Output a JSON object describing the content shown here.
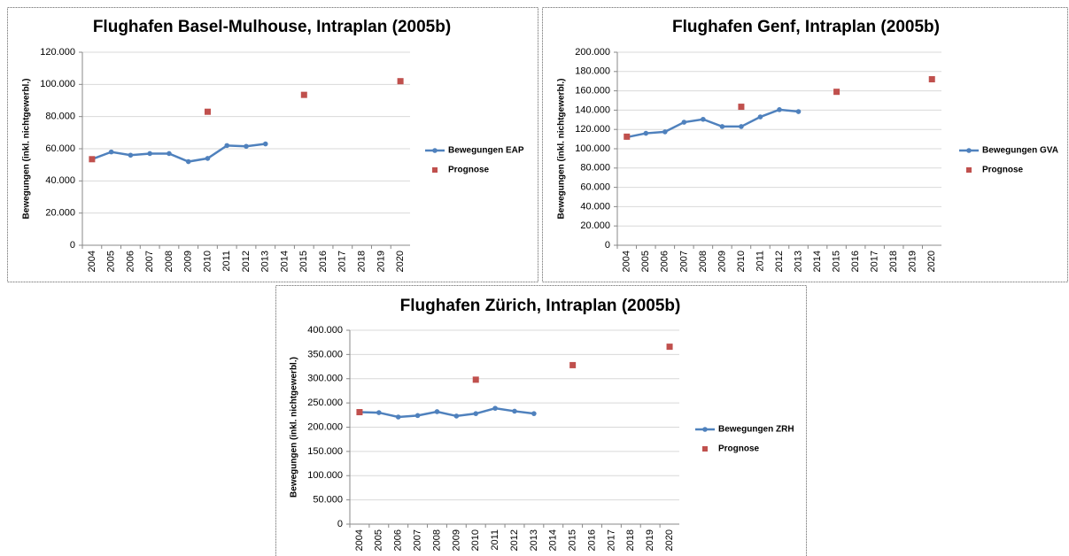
{
  "chart_data": [
    {
      "type": "line",
      "title": "Flughafen Basel-Mulhouse, Intraplan (2005b)",
      "y_label": "Bewegungen (inkl. nichtgewerbl.)",
      "categories": [
        "2004",
        "2005",
        "2006",
        "2007",
        "2008",
        "2009",
        "2010",
        "2011",
        "2012",
        "2013",
        "2014",
        "2015",
        "2016",
        "2017",
        "2018",
        "2019",
        "2020"
      ],
      "series": [
        {
          "name": "Bewegungen EAP",
          "color": "#4f81bd",
          "line": true,
          "values": [
            53500,
            58000,
            56000,
            57000,
            57000,
            52000,
            54000,
            62000,
            61500,
            63000,
            null,
            null,
            null,
            null,
            null,
            null,
            null
          ]
        },
        {
          "name": "Prognose",
          "color": "#c0504d",
          "line": false,
          "values": [
            53500,
            null,
            null,
            null,
            null,
            null,
            83000,
            null,
            null,
            null,
            null,
            93500,
            null,
            null,
            null,
            null,
            102000
          ]
        }
      ],
      "ylim": [
        0,
        120000
      ],
      "yticks": [
        0,
        {
          "value": 20000,
          "label": "20.000"
        },
        {
          "value": 40000,
          "label": "40.000"
        },
        {
          "value": 60000,
          "label": "60.000"
        },
        {
          "value": 80000,
          "label": "80.000"
        },
        {
          "value": 100000,
          "label": "100.000"
        },
        {
          "value": 120000,
          "label": "120.000"
        }
      ],
      "grid": true,
      "legend": "right"
    },
    {
      "type": "line",
      "title": "Flughafen Genf, Intraplan (2005b)",
      "y_label": "Bewegungen (inkl. nichtgewerbl.)",
      "categories": [
        "2004",
        "2005",
        "2006",
        "2007",
        "2008",
        "2009",
        "2010",
        "2011",
        "2012",
        "2013",
        "2014",
        "2015",
        "2016",
        "2017",
        "2018",
        "2019",
        "2020"
      ],
      "series": [
        {
          "name": "Bewegungen GVA",
          "color": "#4f81bd",
          "line": true,
          "values": [
            112000,
            116000,
            117500,
            127500,
            130500,
            123000,
            123000,
            133000,
            140500,
            138500,
            null,
            null,
            null,
            null,
            null,
            null,
            null
          ]
        },
        {
          "name": "Prognose",
          "color": "#c0504d",
          "line": false,
          "values": [
            112500,
            null,
            null,
            null,
            null,
            null,
            143500,
            null,
            null,
            null,
            null,
            159000,
            null,
            null,
            null,
            null,
            172000
          ]
        }
      ],
      "ylim": [
        0,
        200000
      ],
      "yticks": [
        0,
        {
          "value": 20000,
          "label": "20.000"
        },
        {
          "value": 40000,
          "label": "40.000"
        },
        {
          "value": 60000,
          "label": "60.000"
        },
        {
          "value": 80000,
          "label": "80.000"
        },
        {
          "value": 100000,
          "label": "100.000"
        },
        {
          "value": 120000,
          "label": "120.000"
        },
        {
          "value": 140000,
          "label": "140.000"
        },
        {
          "value": 160000,
          "label": "160.000"
        },
        {
          "value": 180000,
          "label": "180.000"
        },
        {
          "value": 200000,
          "label": "200.000"
        }
      ],
      "grid": true,
      "legend": "right"
    },
    {
      "type": "line",
      "title": "Flughafen Zürich, Intraplan (2005b)",
      "y_label": "Bewegungen (inkl. nichtgewerbl.)",
      "categories": [
        "2004",
        "2005",
        "2006",
        "2007",
        "2008",
        "2009",
        "2010",
        "2011",
        "2012",
        "2013",
        "2014",
        "2015",
        "2016",
        "2017",
        "2018",
        "2019",
        "2020"
      ],
      "series": [
        {
          "name": "Bewegungen ZRH",
          "color": "#4f81bd",
          "line": true,
          "values": [
            231000,
            230000,
            221000,
            224000,
            232000,
            223000,
            228000,
            239000,
            233000,
            228000,
            null,
            null,
            null,
            null,
            null,
            null,
            null
          ]
        },
        {
          "name": "Prognose",
          "color": "#c0504d",
          "line": false,
          "values": [
            231000,
            null,
            null,
            null,
            null,
            null,
            298000,
            null,
            null,
            null,
            null,
            328000,
            null,
            null,
            null,
            null,
            366000
          ]
        }
      ],
      "ylim": [
        0,
        400000
      ],
      "yticks": [
        0,
        {
          "value": 50000,
          "label": "50.000"
        },
        {
          "value": 100000,
          "label": "100.000"
        },
        {
          "value": 150000,
          "label": "150.000"
        },
        {
          "value": 200000,
          "label": "200.000"
        },
        {
          "value": 250000,
          "label": "250.000"
        },
        {
          "value": 300000,
          "label": "300.000"
        },
        {
          "value": 350000,
          "label": "350.000"
        },
        {
          "value": 400000,
          "label": "400.000"
        }
      ],
      "grid": true,
      "legend": "right"
    }
  ]
}
